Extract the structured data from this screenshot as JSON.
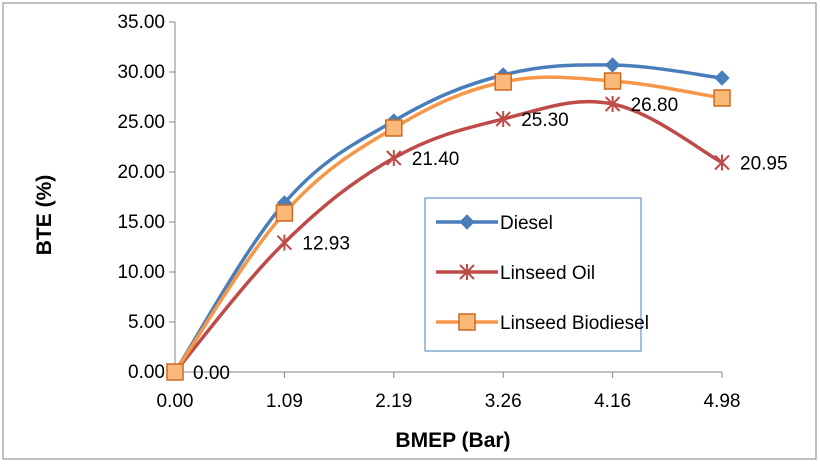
{
  "chart_data": {
    "type": "line",
    "title": "",
    "xlabel": "BMEP (Bar)",
    "ylabel": "BTE (%)",
    "categories": [
      "0.00",
      "1.09",
      "2.19",
      "3.26",
      "4.16",
      "4.98"
    ],
    "y_ticks": [
      "0.00",
      "5.00",
      "10.00",
      "15.00",
      "20.00",
      "25.00",
      "30.00",
      "35.00"
    ],
    "ylim": [
      0,
      35
    ],
    "grid": false,
    "legend_position": "inside-right",
    "series": [
      {
        "name": "Diesel",
        "values": [
          0.0,
          16.9,
          25.1,
          29.7,
          30.7,
          29.4
        ],
        "color": "#4a7ebb",
        "marker": "diamond",
        "data_labels": []
      },
      {
        "name": "Linseed Oil",
        "values": [
          0.0,
          12.93,
          21.4,
          25.3,
          26.8,
          20.95
        ],
        "color": "#be4b48",
        "marker": "asterisk",
        "data_labels": [
          "0.00",
          "12.93",
          "21.40",
          "25.30",
          "26.80",
          "20.95"
        ]
      },
      {
        "name": "Linseed Biodiesel",
        "values": [
          0.0,
          15.9,
          24.4,
          29.0,
          29.1,
          27.4
        ],
        "color": "#f79646",
        "marker": "square",
        "data_labels": []
      }
    ]
  }
}
